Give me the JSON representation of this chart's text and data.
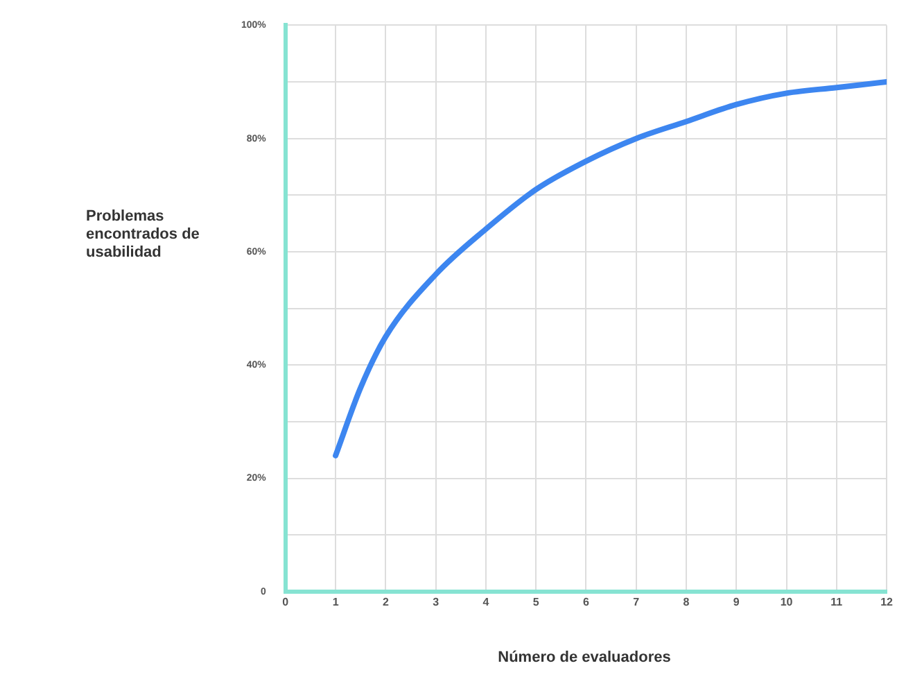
{
  "chart_data": {
    "type": "line",
    "xlabel": "Número de evaluadores",
    "ylabel": "Problemas encontrados de usabilidad",
    "x": [
      1,
      1.5,
      2,
      3,
      4,
      5,
      6,
      7,
      8,
      9,
      10,
      11,
      12
    ],
    "series": [
      {
        "color": "#3d86f0",
        "values": [
          24,
          36,
          45,
          56,
          64,
          71,
          76,
          80,
          83,
          86,
          88,
          89,
          90
        ]
      }
    ],
    "xlim": [
      0,
      12
    ],
    "xticks": [
      0,
      1,
      2,
      3,
      4,
      5,
      6,
      7,
      8,
      9,
      10,
      11,
      12
    ],
    "ylim": [
      0,
      100
    ],
    "yticks": [
      {
        "value": 0,
        "label": "0"
      },
      {
        "value": 10,
        "label": null
      },
      {
        "value": 20,
        "label": "20%"
      },
      {
        "value": 30,
        "label": null
      },
      {
        "value": 40,
        "label": "40%"
      },
      {
        "value": 50,
        "label": null
      },
      {
        "value": 60,
        "label": "60%"
      },
      {
        "value": 70,
        "label": null
      },
      {
        "value": 80,
        "label": "80%"
      },
      {
        "value": 90,
        "label": null
      },
      {
        "value": 100,
        "label": "100%"
      }
    ],
    "grid": true,
    "marker": "none",
    "line_style": "solid",
    "legend": false
  }
}
